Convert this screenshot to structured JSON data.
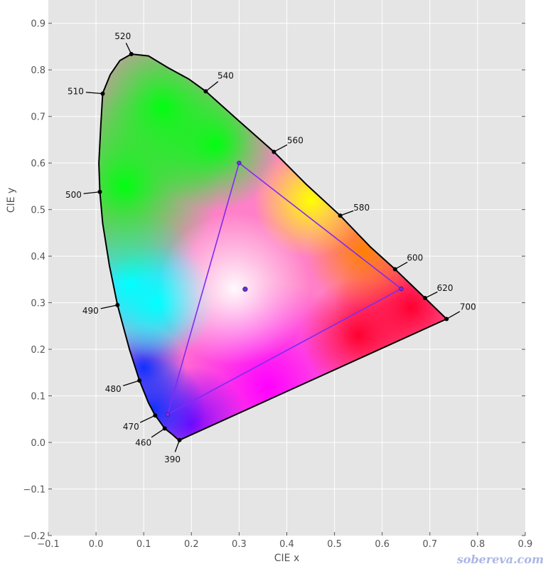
{
  "chart_data": {
    "type": "scatter",
    "xlabel": "CIE x",
    "ylabel": "CIE y",
    "xlim": [
      -0.1,
      0.9
    ],
    "ylim": [
      -0.2,
      0.95
    ],
    "grid": true,
    "xticks": [
      -0.1,
      0.0,
      0.1,
      0.2,
      0.3,
      0.4,
      0.5,
      0.6,
      0.7,
      0.8,
      0.9
    ],
    "yticks": [
      -0.2,
      -0.1,
      0.0,
      0.1,
      0.2,
      0.3,
      0.4,
      0.5,
      0.6,
      0.7,
      0.8,
      0.9
    ],
    "xtick_labels": [
      "−0.1",
      "0.0",
      "0.1",
      "0.2",
      "0.3",
      "0.4",
      "0.5",
      "0.6",
      "0.7",
      "0.8",
      "0.9"
    ],
    "ytick_labels": [
      "−0.2",
      "−0.1",
      "0.0",
      "0.1",
      "0.2",
      "0.3",
      "0.4",
      "0.5",
      "0.6",
      "0.7",
      "0.8",
      "0.9"
    ],
    "spectral_locus": [
      [
        0.175,
        0.005
      ],
      [
        0.17,
        0.008
      ],
      [
        0.16,
        0.017
      ],
      [
        0.144,
        0.03
      ],
      [
        0.13,
        0.05
      ],
      [
        0.124,
        0.058
      ],
      [
        0.11,
        0.085
      ],
      [
        0.091,
        0.133
      ],
      [
        0.07,
        0.2
      ],
      [
        0.045,
        0.295
      ],
      [
        0.028,
        0.38
      ],
      [
        0.014,
        0.47
      ],
      [
        0.008,
        0.538
      ],
      [
        0.006,
        0.6
      ],
      [
        0.01,
        0.68
      ],
      [
        0.014,
        0.75
      ],
      [
        0.03,
        0.79
      ],
      [
        0.05,
        0.82
      ],
      [
        0.074,
        0.834
      ],
      [
        0.11,
        0.83
      ],
      [
        0.15,
        0.805
      ],
      [
        0.195,
        0.78
      ],
      [
        0.23,
        0.754
      ],
      [
        0.3,
        0.69
      ],
      [
        0.373,
        0.624
      ],
      [
        0.44,
        0.555
      ],
      [
        0.512,
        0.487
      ],
      [
        0.575,
        0.42
      ],
      [
        0.627,
        0.372
      ],
      [
        0.69,
        0.31
      ],
      [
        0.735,
        0.265
      ]
    ],
    "wavelength_marks": [
      {
        "label": "390",
        "x": 0.175,
        "y": 0.005,
        "dx": -10,
        "dy": 27
      },
      {
        "label": "460",
        "x": 0.144,
        "y": 0.03,
        "dx": -30,
        "dy": 20
      },
      {
        "label": "470",
        "x": 0.124,
        "y": 0.058,
        "dx": -34,
        "dy": 16
      },
      {
        "label": "480",
        "x": 0.091,
        "y": 0.133,
        "dx": -37,
        "dy": 12
      },
      {
        "label": "490",
        "x": 0.045,
        "y": 0.295,
        "dx": -38,
        "dy": 8
      },
      {
        "label": "500",
        "x": 0.008,
        "y": 0.538,
        "dx": -37,
        "dy": 4
      },
      {
        "label": "510",
        "x": 0.014,
        "y": 0.749,
        "dx": -38,
        "dy": -3
      },
      {
        "label": "520",
        "x": 0.074,
        "y": 0.834,
        "dx": -12,
        "dy": -25
      },
      {
        "label": "540",
        "x": 0.23,
        "y": 0.754,
        "dx": 28,
        "dy": -22
      },
      {
        "label": "560",
        "x": 0.373,
        "y": 0.624,
        "dx": 30,
        "dy": -16
      },
      {
        "label": "580",
        "x": 0.512,
        "y": 0.487,
        "dx": 30,
        "dy": -11
      },
      {
        "label": "600",
        "x": 0.627,
        "y": 0.372,
        "dx": 28,
        "dy": -16
      },
      {
        "label": "620",
        "x": 0.69,
        "y": 0.31,
        "dx": 28,
        "dy": -14
      },
      {
        "label": "700",
        "x": 0.735,
        "y": 0.265,
        "dx": 30,
        "dy": -17
      }
    ],
    "gamut_triangle": [
      [
        0.3,
        0.6
      ],
      [
        0.64,
        0.33
      ],
      [
        0.15,
        0.06
      ]
    ],
    "white_point": [
      0.3127,
      0.329
    ],
    "colors": {
      "background": "#e5e5e5",
      "grid": "#ffffff",
      "locus": "#000000",
      "triangle": "#7f2bf2",
      "white_point": "#6633cc"
    }
  },
  "watermark": "sobereva.com"
}
